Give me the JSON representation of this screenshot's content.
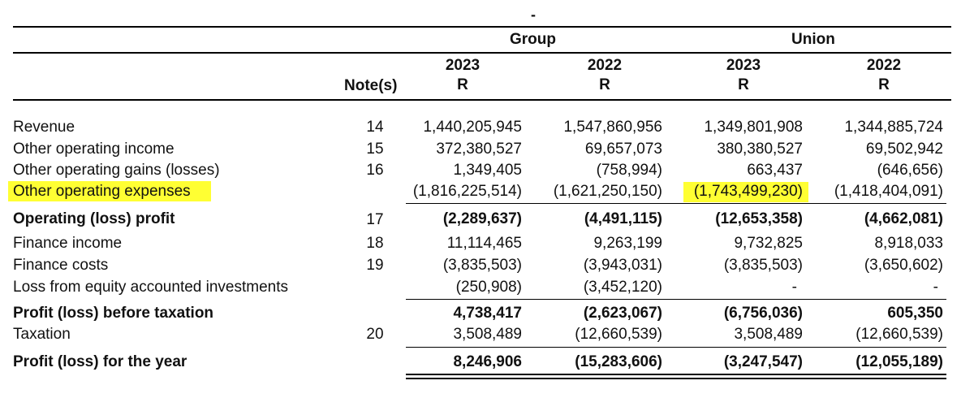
{
  "header": {
    "top_mark": "-",
    "group_label": "Group",
    "union_label": "Union",
    "notes_label": "Note(s)",
    "columns": [
      {
        "year": "2023",
        "currency": "R"
      },
      {
        "year": "2022",
        "currency": "R"
      },
      {
        "year": "2023",
        "currency": "R"
      },
      {
        "year": "2022",
        "currency": "R"
      }
    ]
  },
  "rows": [
    {
      "label": "Revenue",
      "note": "14",
      "values": [
        "1,440,205,945",
        "1,547,860,956",
        "1,349,801,908",
        "1,344,885,724"
      ]
    },
    {
      "label": "Other operating income",
      "note": "15",
      "values": [
        "372,380,527",
        "69,657,073",
        "380,380,527",
        "69,502,942"
      ]
    },
    {
      "label": "Other operating gains (losses)",
      "note": "16",
      "values": [
        "1,349,405",
        "(758,994)",
        "663,437",
        "(646,656)"
      ]
    },
    {
      "label": "Other operating expenses",
      "note": "",
      "values": [
        "(1,816,225,514)",
        "(1,621,250,150)",
        "(1,743,499,230)",
        "(1,418,404,091)"
      ]
    },
    {
      "label": "Operating (loss) profit",
      "note": "17",
      "values": [
        "(2,289,637)",
        "(4,491,115)",
        "(12,653,358)",
        "(4,662,081)"
      ]
    },
    {
      "label": "Finance income",
      "note": "18",
      "values": [
        "11,114,465",
        "9,263,199",
        "9,732,825",
        "8,918,033"
      ]
    },
    {
      "label": "Finance costs",
      "note": "19",
      "values": [
        "(3,835,503)",
        "(3,943,031)",
        "(3,835,503)",
        "(3,650,602)"
      ]
    },
    {
      "label": "Loss from equity accounted investments",
      "note": "",
      "values": [
        "(250,908)",
        "(3,452,120)",
        "-",
        "-"
      ]
    },
    {
      "label": "Profit (loss) before taxation",
      "note": "",
      "values": [
        "4,738,417",
        "(2,623,067)",
        "(6,756,036)",
        "605,350"
      ]
    },
    {
      "label": "Taxation",
      "note": "20",
      "values": [
        "3,508,489",
        "(12,660,539)",
        "3,508,489",
        "(12,660,539)"
      ]
    },
    {
      "label": "Profit (loss) for the year",
      "note": "",
      "values": [
        "8,246,906",
        "(15,283,606)",
        "(3,247,547)",
        "(12,055,189)"
      ]
    }
  ],
  "highlight_color": "#ffff33"
}
